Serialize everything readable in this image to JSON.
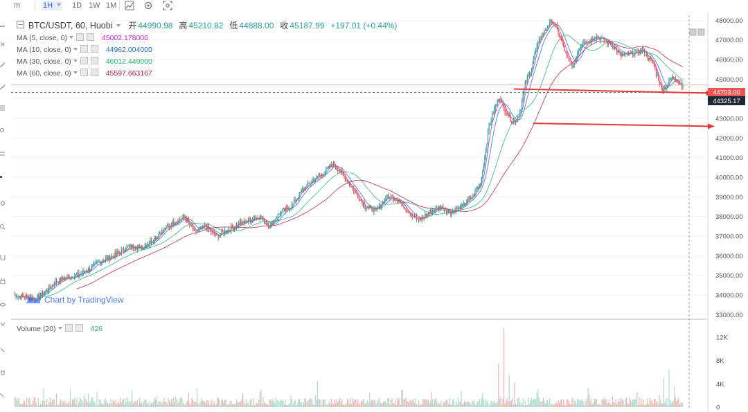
{
  "toolbar": {
    "items": [
      {
        "label": "m",
        "active": false
      },
      {
        "label": "1H",
        "active": true
      },
      {
        "label": "1D",
        "active": false
      },
      {
        "label": "1W",
        "active": false
      },
      {
        "label": "1M",
        "active": false
      }
    ],
    "icons": [
      "chart-style-icon",
      "indicators-icon",
      "fullscreen-icon"
    ]
  },
  "legend": {
    "title": "BTC/USDT, 60, Huobi",
    "ohlc": [
      {
        "label": "开",
        "value": "44990.98"
      },
      {
        "label": "高",
        "value": "45210.82"
      },
      {
        "label": "低",
        "value": "44888.00"
      },
      {
        "label": "收",
        "value": "45187.99"
      }
    ],
    "change": "+197.01 (+0.44%)",
    "ma": [
      {
        "name": "MA (5, close, 0)",
        "value": "45002.178000",
        "color": "#d81bd8"
      },
      {
        "name": "MA (10, close, 0)",
        "value": "44962.004000",
        "color": "#1e6fd9"
      },
      {
        "name": "MA (30, close, 0)",
        "value": "46012.449000",
        "color": "#22b573"
      },
      {
        "name": "MA (60, close, 0)",
        "value": "45597.663167",
        "color": "#c2185b"
      }
    ]
  },
  "volume_legend": {
    "name": "Volume (20)",
    "value": "426"
  },
  "watermark": "Chart by TradingView",
  "price_labels": {
    "current": "44703.00",
    "level": "44325.17"
  },
  "colors": {
    "up": "#26a69a",
    "down": "#ef5350",
    "up_vol": "#a8dccf",
    "down_vol": "#f5b0ae",
    "arrow": "#e53935"
  },
  "chart_data": {
    "type": "candlestick",
    "symbol": "BTC/USDT",
    "interval": "60",
    "exchange": "Huobi",
    "y_range": [
      32800,
      48400
    ],
    "y_ticks": [
      33000,
      34000,
      35000,
      36000,
      37000,
      38000,
      39000,
      40000,
      41000,
      42000,
      43000,
      44000,
      45000,
      46000,
      47000,
      48000
    ],
    "y_tick_labels": [
      "33000.00",
      "34000.00",
      "35000.00",
      "36000.00",
      "37000.00",
      "38000.00",
      "39000.00",
      "40000.00",
      "41000.00",
      "42000.00",
      "43000.00",
      "44000.00",
      "45000.00",
      "46000.00",
      "47000.00",
      "48000.00"
    ],
    "close_path": [
      [
        0,
        34000
      ],
      [
        20,
        33800
      ],
      [
        30,
        34200
      ],
      [
        40,
        34700
      ],
      [
        50,
        34900
      ],
      [
        60,
        35000
      ],
      [
        70,
        35300
      ],
      [
        80,
        35700
      ],
      [
        90,
        35900
      ],
      [
        100,
        36200
      ],
      [
        110,
        36500
      ],
      [
        120,
        36400
      ],
      [
        130,
        36800
      ],
      [
        140,
        37300
      ],
      [
        150,
        37700
      ],
      [
        160,
        38000
      ],
      [
        170,
        37200
      ],
      [
        180,
        37500
      ],
      [
        190,
        37000
      ],
      [
        200,
        37300
      ],
      [
        210,
        37600
      ],
      [
        220,
        37800
      ],
      [
        230,
        38000
      ],
      [
        240,
        37500
      ],
      [
        250,
        38200
      ],
      [
        260,
        38500
      ],
      [
        270,
        39300
      ],
      [
        280,
        39800
      ],
      [
        290,
        40200
      ],
      [
        300,
        40700
      ],
      [
        305,
        40400
      ],
      [
        310,
        40000
      ],
      [
        320,
        39300
      ],
      [
        330,
        38500
      ],
      [
        340,
        38300
      ],
      [
        350,
        39000
      ],
      [
        360,
        38900
      ],
      [
        370,
        38300
      ],
      [
        380,
        37800
      ],
      [
        390,
        38200
      ],
      [
        400,
        38500
      ],
      [
        410,
        38200
      ],
      [
        420,
        38500
      ],
      [
        430,
        39000
      ],
      [
        438,
        39700
      ],
      [
        442,
        41000
      ],
      [
        446,
        42600
      ],
      [
        450,
        43300
      ],
      [
        456,
        44100
      ],
      [
        460,
        43500
      ],
      [
        466,
        43000
      ],
      [
        470,
        42800
      ],
      [
        475,
        43300
      ],
      [
        480,
        44800
      ],
      [
        485,
        45400
      ],
      [
        490,
        46500
      ],
      [
        495,
        47200
      ],
      [
        500,
        47600
      ],
      [
        505,
        48000
      ],
      [
        510,
        47500
      ],
      [
        515,
        46800
      ],
      [
        520,
        46000
      ],
      [
        525,
        45600
      ],
      [
        530,
        46500
      ],
      [
        535,
        47000
      ],
      [
        540,
        46900
      ],
      [
        545,
        47200
      ],
      [
        550,
        47100
      ],
      [
        560,
        46800
      ],
      [
        570,
        46200
      ],
      [
        580,
        46300
      ],
      [
        590,
        46500
      ],
      [
        600,
        45800
      ],
      [
        605,
        45000
      ],
      [
        608,
        44500
      ],
      [
        612,
        44600
      ],
      [
        616,
        45000
      ],
      [
        620,
        45100
      ],
      [
        625,
        44800
      ],
      [
        628,
        44703
      ]
    ],
    "ma_lines": [
      {
        "name": "MA (5, close, 0)",
        "period": 5
      },
      {
        "name": "MA (10, close, 0)",
        "period": 10
      },
      {
        "name": "MA (30, close, 0)",
        "period": 30
      },
      {
        "name": "MA (60, close, 0)",
        "period": 60
      }
    ],
    "horizontal_levels": [
      44325.17,
      42600
    ],
    "current_price": 44703.0,
    "volume": {
      "y_range": [
        0,
        14000
      ],
      "y_ticks": [
        0,
        4000,
        8000,
        12000
      ],
      "y_tick_labels": [
        "0",
        "4K",
        "8K",
        "12K"
      ],
      "spikes": [
        [
          285,
          4500
        ],
        [
          455,
          7500
        ],
        [
          460,
          13500
        ],
        [
          465,
          5500
        ],
        [
          470,
          4200
        ],
        [
          610,
          5000
        ],
        [
          615,
          6500
        ]
      ]
    }
  }
}
